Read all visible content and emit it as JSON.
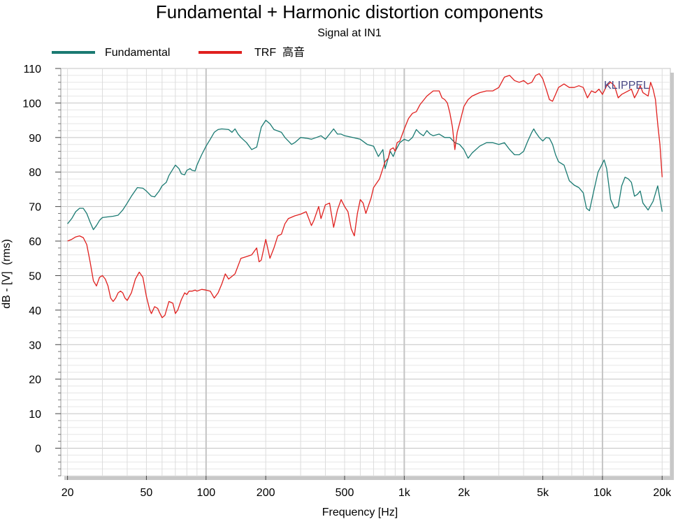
{
  "chart_data": {
    "type": "line",
    "title": "Fundamental + Harmonic distortion components",
    "subtitle": "Signal at IN1",
    "xlabel": "Frequency [Hz]",
    "ylabel": "dB - [V]  (rms)",
    "watermark": "KLIPPEL",
    "x_scale": "log",
    "xlim": [
      18.5,
      22000
    ],
    "ylim": [
      -8,
      110
    ],
    "grid": true,
    "legend_position": "top-left",
    "x_ticks": [
      {
        "value": 20,
        "label": "20"
      },
      {
        "value": 50,
        "label": "50"
      },
      {
        "value": 100,
        "label": "100"
      },
      {
        "value": 200,
        "label": "200"
      },
      {
        "value": 500,
        "label": "500"
      },
      {
        "value": 1000,
        "label": "1k"
      },
      {
        "value": 2000,
        "label": "2k"
      },
      {
        "value": 5000,
        "label": "5k"
      },
      {
        "value": 10000,
        "label": "10k"
      },
      {
        "value": 20000,
        "label": "20k"
      }
    ],
    "y_ticks": [
      0,
      10,
      20,
      30,
      40,
      50,
      60,
      70,
      80,
      90,
      100,
      110
    ],
    "series": [
      {
        "name": "Fundamental",
        "color": "#1a7a72",
        "points": [
          [
            20,
            65
          ],
          [
            21,
            66.5
          ],
          [
            22,
            68.5
          ],
          [
            23,
            69.5
          ],
          [
            24,
            69.5
          ],
          [
            25,
            68
          ],
          [
            26,
            65.5
          ],
          [
            27,
            63.3
          ],
          [
            28,
            64.5
          ],
          [
            29,
            66
          ],
          [
            30,
            66.8
          ],
          [
            32,
            67
          ],
          [
            34,
            67.2
          ],
          [
            36,
            67.5
          ],
          [
            38,
            69
          ],
          [
            40,
            71
          ],
          [
            42,
            73
          ],
          [
            45,
            75.5
          ],
          [
            48,
            75.3
          ],
          [
            50,
            74.5
          ],
          [
            53,
            73
          ],
          [
            55,
            72.8
          ],
          [
            58,
            74.5
          ],
          [
            60,
            76
          ],
          [
            63,
            77
          ],
          [
            65,
            79
          ],
          [
            70,
            82
          ],
          [
            73,
            81
          ],
          [
            75,
            79.5
          ],
          [
            78,
            79.2
          ],
          [
            80,
            80.5
          ],
          [
            83,
            81
          ],
          [
            85,
            80.5
          ],
          [
            88,
            80.3
          ],
          [
            90,
            82
          ],
          [
            95,
            85
          ],
          [
            100,
            87.5
          ],
          [
            105,
            89.5
          ],
          [
            110,
            91.5
          ],
          [
            115,
            92.3
          ],
          [
            120,
            92.5
          ],
          [
            130,
            92.3
          ],
          [
            135,
            91.5
          ],
          [
            140,
            92.5
          ],
          [
            145,
            91
          ],
          [
            150,
            90
          ],
          [
            160,
            88.5
          ],
          [
            170,
            86.5
          ],
          [
            180,
            87.2
          ],
          [
            190,
            93
          ],
          [
            200,
            95
          ],
          [
            210,
            94
          ],
          [
            220,
            92.3
          ],
          [
            240,
            91.5
          ],
          [
            250,
            90
          ],
          [
            260,
            89
          ],
          [
            270,
            88
          ],
          [
            280,
            88.5
          ],
          [
            300,
            90
          ],
          [
            320,
            89.8
          ],
          [
            340,
            89.5
          ],
          [
            360,
            90
          ],
          [
            380,
            90.5
          ],
          [
            400,
            89.5
          ],
          [
            420,
            91
          ],
          [
            440,
            92.5
          ],
          [
            460,
            91
          ],
          [
            480,
            91
          ],
          [
            500,
            90.5
          ],
          [
            550,
            90
          ],
          [
            600,
            89.5
          ],
          [
            650,
            88
          ],
          [
            700,
            87.5
          ],
          [
            740,
            84.5
          ],
          [
            780,
            86.5
          ],
          [
            800,
            81
          ],
          [
            830,
            84
          ],
          [
            850,
            86
          ],
          [
            880,
            84.5
          ],
          [
            900,
            86
          ],
          [
            950,
            88.5
          ],
          [
            1000,
            89.5
          ],
          [
            1050,
            89
          ],
          [
            1100,
            90
          ],
          [
            1150,
            92.3
          ],
          [
            1200,
            91.2
          ],
          [
            1250,
            90.5
          ],
          [
            1300,
            92
          ],
          [
            1350,
            91
          ],
          [
            1400,
            90.5
          ],
          [
            1500,
            91
          ],
          [
            1600,
            90
          ],
          [
            1700,
            90
          ],
          [
            1800,
            88.5
          ],
          [
            1900,
            88
          ],
          [
            2000,
            86.5
          ],
          [
            2100,
            84
          ],
          [
            2200,
            85.5
          ],
          [
            2400,
            87.5
          ],
          [
            2600,
            88.5
          ],
          [
            2800,
            88.5
          ],
          [
            3000,
            88
          ],
          [
            3200,
            88.5
          ],
          [
            3400,
            86.5
          ],
          [
            3600,
            85
          ],
          [
            3800,
            85
          ],
          [
            4000,
            86
          ],
          [
            4200,
            89
          ],
          [
            4400,
            91.5
          ],
          [
            4500,
            92.5
          ],
          [
            4600,
            91.5
          ],
          [
            4800,
            90
          ],
          [
            5000,
            89
          ],
          [
            5200,
            90
          ],
          [
            5400,
            89.8
          ],
          [
            5600,
            88
          ],
          [
            5800,
            85
          ],
          [
            6000,
            83
          ],
          [
            6400,
            82
          ],
          [
            6800,
            77.5
          ],
          [
            7200,
            76.2
          ],
          [
            7600,
            75.5
          ],
          [
            8000,
            74
          ],
          [
            8300,
            69.5
          ],
          [
            8600,
            68.8
          ],
          [
            9000,
            74
          ],
          [
            9500,
            80
          ],
          [
            10000,
            82.5
          ],
          [
            10200,
            83.5
          ],
          [
            10500,
            81
          ],
          [
            11000,
            72
          ],
          [
            11500,
            69.5
          ],
          [
            12000,
            70
          ],
          [
            12500,
            76
          ],
          [
            13000,
            78.5
          ],
          [
            13500,
            78
          ],
          [
            14000,
            77
          ],
          [
            14500,
            73
          ],
          [
            15000,
            73.5
          ],
          [
            15500,
            74.5
          ],
          [
            16000,
            71
          ],
          [
            17000,
            69
          ],
          [
            18000,
            71.5
          ],
          [
            19000,
            76
          ],
          [
            20000,
            68.5
          ]
        ]
      },
      {
        "name": "TRF  高音",
        "color": "#e0201e",
        "points": [
          [
            20,
            60
          ],
          [
            21,
            60.5
          ],
          [
            22,
            61.2
          ],
          [
            23,
            61.5
          ],
          [
            24,
            61
          ],
          [
            25,
            59
          ],
          [
            26,
            54
          ],
          [
            27,
            48.5
          ],
          [
            28,
            47
          ],
          [
            29,
            49.5
          ],
          [
            30,
            50
          ],
          [
            31,
            49
          ],
          [
            32,
            47
          ],
          [
            33,
            43.5
          ],
          [
            34,
            42.5
          ],
          [
            35,
            43.5
          ],
          [
            36,
            45
          ],
          [
            37,
            45.5
          ],
          [
            38,
            45
          ],
          [
            39,
            43.5
          ],
          [
            40,
            42.8
          ],
          [
            42,
            45
          ],
          [
            44,
            49
          ],
          [
            46,
            51
          ],
          [
            48,
            49.5
          ],
          [
            50,
            44
          ],
          [
            52,
            40
          ],
          [
            53,
            39
          ],
          [
            55,
            41
          ],
          [
            57,
            40.5
          ],
          [
            58,
            39.5
          ],
          [
            60,
            37.8
          ],
          [
            62,
            38.5
          ],
          [
            65,
            42.5
          ],
          [
            68,
            42
          ],
          [
            70,
            39
          ],
          [
            72,
            40
          ],
          [
            75,
            43
          ],
          [
            78,
            45
          ],
          [
            80,
            44.5
          ],
          [
            82,
            45.5
          ],
          [
            85,
            45.5
          ],
          [
            88,
            45.8
          ],
          [
            90,
            45.5
          ],
          [
            95,
            46
          ],
          [
            100,
            45.8
          ],
          [
            105,
            45.5
          ],
          [
            110,
            43.5
          ],
          [
            115,
            45
          ],
          [
            120,
            47.5
          ],
          [
            125,
            50.5
          ],
          [
            130,
            49
          ],
          [
            140,
            50.5
          ],
          [
            150,
            55
          ],
          [
            160,
            55.5
          ],
          [
            170,
            56
          ],
          [
            180,
            58
          ],
          [
            185,
            54
          ],
          [
            190,
            54.5
          ],
          [
            200,
            60.5
          ],
          [
            210,
            55
          ],
          [
            220,
            58
          ],
          [
            230,
            61.5
          ],
          [
            240,
            62
          ],
          [
            250,
            65
          ],
          [
            260,
            66.5
          ],
          [
            280,
            67.3
          ],
          [
            300,
            67.8
          ],
          [
            320,
            68.5
          ],
          [
            340,
            64.5
          ],
          [
            350,
            66
          ],
          [
            370,
            70
          ],
          [
            380,
            66.5
          ],
          [
            400,
            70.5
          ],
          [
            420,
            71
          ],
          [
            440,
            64
          ],
          [
            460,
            69
          ],
          [
            480,
            72
          ],
          [
            500,
            70
          ],
          [
            520,
            68.5
          ],
          [
            540,
            63.5
          ],
          [
            560,
            61.5
          ],
          [
            580,
            68
          ],
          [
            600,
            72
          ],
          [
            620,
            71
          ],
          [
            640,
            68
          ],
          [
            680,
            72.5
          ],
          [
            700,
            75.5
          ],
          [
            750,
            78
          ],
          [
            800,
            83
          ],
          [
            830,
            84
          ],
          [
            850,
            86.5
          ],
          [
            880,
            87
          ],
          [
            900,
            86
          ],
          [
            920,
            88.5
          ],
          [
            950,
            89
          ],
          [
            1000,
            92.5
          ],
          [
            1050,
            95.5
          ],
          [
            1100,
            97
          ],
          [
            1150,
            97.5
          ],
          [
            1200,
            99.5
          ],
          [
            1300,
            102
          ],
          [
            1400,
            103.5
          ],
          [
            1500,
            103.5
          ],
          [
            1550,
            101.5
          ],
          [
            1600,
            101
          ],
          [
            1650,
            100
          ],
          [
            1700,
            97
          ],
          [
            1750,
            93
          ],
          [
            1800,
            86.5
          ],
          [
            1850,
            91.5
          ],
          [
            1900,
            94
          ],
          [
            2000,
            99
          ],
          [
            2100,
            101
          ],
          [
            2200,
            102
          ],
          [
            2400,
            103
          ],
          [
            2600,
            103.5
          ],
          [
            2800,
            103.5
          ],
          [
            3000,
            104.5
          ],
          [
            3200,
            107.5
          ],
          [
            3400,
            108
          ],
          [
            3600,
            106.5
          ],
          [
            3800,
            106
          ],
          [
            4000,
            106.5
          ],
          [
            4200,
            105.5
          ],
          [
            4400,
            106
          ],
          [
            4600,
            108
          ],
          [
            4800,
            108.5
          ],
          [
            5000,
            107
          ],
          [
            5200,
            104
          ],
          [
            5400,
            101
          ],
          [
            5600,
            100.5
          ],
          [
            5800,
            102.5
          ],
          [
            6000,
            104.5
          ],
          [
            6400,
            105.5
          ],
          [
            6800,
            104.5
          ],
          [
            7200,
            104.5
          ],
          [
            7600,
            105
          ],
          [
            8000,
            104.5
          ],
          [
            8400,
            101.5
          ],
          [
            8800,
            103.5
          ],
          [
            9200,
            103
          ],
          [
            9600,
            104
          ],
          [
            10000,
            102.5
          ],
          [
            10500,
            105
          ],
          [
            11000,
            106
          ],
          [
            11500,
            105
          ],
          [
            12000,
            101.5
          ],
          [
            12500,
            102.5
          ],
          [
            13000,
            103
          ],
          [
            13500,
            103.5
          ],
          [
            14000,
            104
          ],
          [
            14500,
            101.5
          ],
          [
            15000,
            103
          ],
          [
            15500,
            105
          ],
          [
            16000,
            103
          ],
          [
            17000,
            102
          ],
          [
            17500,
            106
          ],
          [
            18000,
            104
          ],
          [
            18500,
            101
          ],
          [
            19000,
            94
          ],
          [
            19500,
            88
          ],
          [
            20000,
            78.5
          ]
        ]
      }
    ]
  }
}
